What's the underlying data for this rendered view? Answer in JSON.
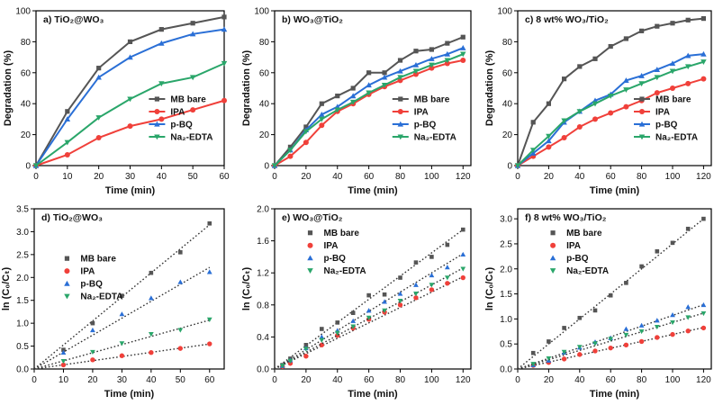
{
  "chart_data": [
    {
      "type": "line",
      "panel_label": "a) TiO₂@WO₃",
      "xlabel": "Time (min)",
      "ylabel": "Degradation (%)",
      "xlim": [
        0,
        60
      ],
      "ylim": [
        0,
        100
      ],
      "xticks": [
        0,
        10,
        20,
        30,
        40,
        50,
        60
      ],
      "yticks": [
        0,
        20,
        40,
        60,
        80,
        100
      ],
      "legend_position": "bottom-right",
      "x": [
        0,
        10,
        20,
        30,
        40,
        50,
        60
      ],
      "series": [
        {
          "name": "MB bare",
          "color": "#555555",
          "marker": "square",
          "values": [
            0,
            35,
            63,
            80,
            88,
            92,
            96
          ]
        },
        {
          "name": "IPA",
          "color": "#f0403a",
          "marker": "circle",
          "values": [
            0,
            7,
            18,
            25.5,
            30,
            36,
            42
          ]
        },
        {
          "name": "p-BQ",
          "color": "#2a6fd6",
          "marker": "triangle-up",
          "values": [
            0,
            30,
            57,
            70,
            79,
            85,
            88
          ]
        },
        {
          "name": "Na₂-EDTA",
          "color": "#2aa66a",
          "marker": "triangle-down",
          "values": [
            0,
            15,
            31,
            43,
            53,
            57,
            66
          ]
        }
      ]
    },
    {
      "type": "line",
      "panel_label": "b) WO₃@TiO₂",
      "xlabel": "Time (min)",
      "ylabel": "Degradation (%)",
      "xlim": [
        0,
        125
      ],
      "ylim": [
        0,
        100
      ],
      "xticks": [
        0,
        20,
        40,
        60,
        80,
        100,
        120
      ],
      "yticks": [
        0,
        20,
        40,
        60,
        80,
        100
      ],
      "legend_position": "bottom-right",
      "x": [
        0,
        10,
        20,
        30,
        40,
        50,
        60,
        70,
        80,
        90,
        100,
        110,
        120
      ],
      "series": [
        {
          "name": "MB bare",
          "color": "#555555",
          "marker": "square",
          "values": [
            0,
            12,
            25,
            40,
            45,
            50,
            60,
            60,
            68,
            74,
            75,
            79,
            83
          ]
        },
        {
          "name": "IPA",
          "color": "#f0403a",
          "marker": "circle",
          "values": [
            0,
            6,
            15,
            26,
            35,
            40,
            46,
            51,
            55,
            59,
            63,
            66,
            68
          ]
        },
        {
          "name": "p-BQ",
          "color": "#2a6fd6",
          "marker": "triangle-up",
          "values": [
            0,
            10,
            23,
            33,
            38,
            45,
            52,
            57,
            61,
            65,
            69,
            72,
            76
          ]
        },
        {
          "name": "Na₂-EDTA",
          "color": "#2aa66a",
          "marker": "triangle-down",
          "values": [
            0,
            10,
            22,
            30,
            36,
            41,
            47,
            52,
            57,
            61,
            65,
            68,
            72
          ]
        }
      ]
    },
    {
      "type": "line",
      "panel_label": "c) 8 wt% WO₃/TiO₂",
      "xlabel": "Time (min)",
      "ylabel": "Degradation (%)",
      "xlim": [
        0,
        125
      ],
      "ylim": [
        0,
        100
      ],
      "xticks": [
        0,
        20,
        40,
        60,
        80,
        100,
        120
      ],
      "yticks": [
        0,
        20,
        40,
        60,
        80,
        100
      ],
      "legend_position": "bottom-right",
      "x": [
        0,
        10,
        20,
        30,
        40,
        50,
        60,
        70,
        80,
        90,
        100,
        110,
        120
      ],
      "series": [
        {
          "name": "MB bare",
          "color": "#555555",
          "marker": "square",
          "values": [
            0,
            28,
            40,
            56,
            64,
            69,
            77,
            82,
            87,
            90,
            92,
            94,
            95
          ]
        },
        {
          "name": "IPA",
          "color": "#f0403a",
          "marker": "circle",
          "values": [
            0,
            6,
            12,
            18,
            25,
            30,
            34,
            38,
            42,
            47,
            50,
            53,
            56
          ]
        },
        {
          "name": "p-BQ",
          "color": "#2a6fd6",
          "marker": "triangle-up",
          "values": [
            0,
            8,
            16,
            28,
            35,
            42,
            46,
            55,
            58,
            62,
            66,
            71,
            72
          ]
        },
        {
          "name": "Na₂-EDTA",
          "color": "#2aa66a",
          "marker": "triangle-down",
          "values": [
            0,
            10,
            19,
            29,
            35,
            40,
            45,
            49,
            53,
            57,
            61,
            64,
            67
          ]
        }
      ]
    },
    {
      "type": "scatter",
      "panel_label": "d) TiO₂@WO₃",
      "xlabel": "Time (min)",
      "ylabel": "ln (C₀/Cₜ)",
      "xlim": [
        0,
        65
      ],
      "ylim": [
        0,
        3.5
      ],
      "xticks": [
        0,
        10,
        20,
        30,
        40,
        50,
        60
      ],
      "yticks": [
        0,
        0.5,
        1.0,
        1.5,
        2.0,
        2.5,
        3.0,
        3.5
      ],
      "ytick_decimals": 1,
      "legend_position": "middle-left",
      "fit_lines": "dotted linear fits through origin",
      "x": [
        10,
        20,
        30,
        40,
        50,
        60
      ],
      "series": [
        {
          "name": "MB bare",
          "color": "#555555",
          "marker": "square",
          "values": [
            0.42,
            1.0,
            1.6,
            2.1,
            2.55,
            3.18
          ],
          "slope": 0.0525
        },
        {
          "name": "IPA",
          "color": "#f0403a",
          "marker": "circle",
          "values": [
            0.09,
            0.2,
            0.29,
            0.36,
            0.45,
            0.55
          ],
          "slope": 0.0091
        },
        {
          "name": "p-BQ",
          "color": "#2a6fd6",
          "marker": "triangle-up",
          "values": [
            0.36,
            0.85,
            1.2,
            1.55,
            1.9,
            2.12
          ],
          "slope": 0.037
        },
        {
          "name": "Na₂-EDTA",
          "color": "#2aa66a",
          "marker": "triangle-down",
          "values": [
            0.17,
            0.37,
            0.56,
            0.76,
            0.85,
            1.08
          ],
          "slope": 0.0178
        }
      ]
    },
    {
      "type": "scatter",
      "panel_label": "e) WO₃@TiO₂",
      "xlabel": "Time (min)",
      "ylabel": "ln (C₀/Cₜ)",
      "xlim": [
        0,
        125
      ],
      "ylim": [
        0,
        2.0
      ],
      "xticks": [
        0,
        20,
        40,
        60,
        80,
        100,
        120
      ],
      "yticks": [
        0,
        0.4,
        0.8,
        1.2,
        1.6,
        2.0
      ],
      "ytick_decimals": 1,
      "legend_position": "top-left",
      "fit_lines": "dotted linear fits through origin",
      "x": [
        5,
        10,
        20,
        30,
        40,
        50,
        60,
        70,
        80,
        90,
        100,
        110,
        120
      ],
      "series": [
        {
          "name": "MB bare",
          "color": "#555555",
          "marker": "square",
          "values": [
            0.05,
            0.13,
            0.3,
            0.5,
            0.58,
            0.7,
            0.92,
            0.93,
            1.14,
            1.33,
            1.4,
            1.55,
            1.74
          ],
          "slope": 0.0145
        },
        {
          "name": "IPA",
          "color": "#f0403a",
          "marker": "circle",
          "values": [
            0.03,
            0.07,
            0.16,
            0.3,
            0.42,
            0.51,
            0.62,
            0.71,
            0.8,
            0.89,
            0.99,
            1.07,
            1.14
          ],
          "slope": 0.0096
        },
        {
          "name": "p-BQ",
          "color": "#2a6fd6",
          "marker": "triangle-up",
          "values": [
            0.04,
            0.11,
            0.26,
            0.4,
            0.48,
            0.6,
            0.73,
            0.84,
            0.94,
            1.05,
            1.17,
            1.27,
            1.43
          ],
          "slope": 0.012
        },
        {
          "name": "Na₂-EDTA",
          "color": "#2aa66a",
          "marker": "triangle-down",
          "values": [
            0.04,
            0.1,
            0.25,
            0.36,
            0.45,
            0.53,
            0.64,
            0.73,
            0.85,
            0.94,
            1.05,
            1.14,
            1.25
          ],
          "slope": 0.0105
        }
      ]
    },
    {
      "type": "scatter",
      "panel_label": "f) 8 wt% WO₃/TiO₂",
      "xlabel": "Time (min)",
      "ylabel": "ln (C₀/Cₜ)",
      "xlim": [
        0,
        125
      ],
      "ylim": [
        0,
        3.2
      ],
      "xticks": [
        0,
        20,
        40,
        60,
        80,
        100,
        120
      ],
      "yticks": [
        0,
        0.5,
        1.0,
        1.5,
        2.0,
        2.5,
        3.0
      ],
      "ytick_decimals": 1,
      "legend_position": "top-left",
      "fit_lines": "dotted linear fits through origin",
      "x": [
        10,
        20,
        30,
        40,
        50,
        60,
        70,
        80,
        90,
        100,
        110,
        120
      ],
      "series": [
        {
          "name": "MB bare",
          "color": "#555555",
          "marker": "square",
          "values": [
            0.32,
            0.55,
            0.82,
            1.02,
            1.17,
            1.47,
            1.72,
            2.05,
            2.35,
            2.52,
            2.8,
            3.0
          ],
          "slope": 0.025
        },
        {
          "name": "IPA",
          "color": "#f0403a",
          "marker": "circle",
          "values": [
            0.07,
            0.13,
            0.2,
            0.29,
            0.36,
            0.42,
            0.48,
            0.55,
            0.63,
            0.69,
            0.76,
            0.82
          ],
          "slope": 0.0069
        },
        {
          "name": "p-BQ",
          "color": "#2a6fd6",
          "marker": "triangle-up",
          "values": [
            0.08,
            0.17,
            0.33,
            0.43,
            0.54,
            0.62,
            0.8,
            0.87,
            0.97,
            1.08,
            1.24,
            1.28
          ],
          "slope": 0.0107
        },
        {
          "name": "Na₂-EDTA",
          "color": "#2aa66a",
          "marker": "triangle-down",
          "values": [
            0.1,
            0.21,
            0.34,
            0.44,
            0.51,
            0.6,
            0.68,
            0.75,
            0.84,
            0.93,
            1.03,
            1.11
          ],
          "slope": 0.0093
        }
      ]
    }
  ]
}
